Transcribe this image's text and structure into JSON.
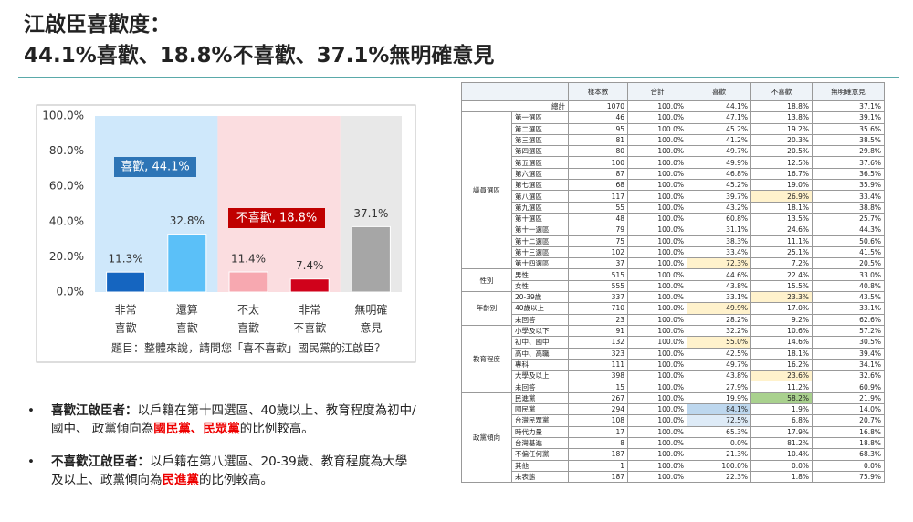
{
  "header": {
    "title_lines": [
      "江啟臣喜歡度：",
      "44.1%喜歡、18.8%不喜歡、37.1%無明確意見"
    ]
  },
  "chart_data": {
    "type": "bar",
    "categories": [
      [
        "非常",
        "喜歡"
      ],
      [
        "還算",
        "喜歡"
      ],
      [
        "不太",
        "喜歡"
      ],
      [
        "非常",
        "不喜歡"
      ],
      [
        "無明確",
        "意見"
      ]
    ],
    "values": [
      11.3,
      32.8,
      11.4,
      7.4,
      37.1
    ],
    "value_labels": [
      "11.3%",
      "32.8%",
      "11.4%",
      "7.4%",
      "37.1%"
    ],
    "colors": [
      "#1565c0",
      "#5bc0f8",
      "#f7a8b0",
      "#d0021b",
      "#a6a6a6"
    ],
    "ylim": [
      0,
      100
    ],
    "yticks": [
      {
        "value": 0,
        "label": "0.0%"
      },
      {
        "value": 20,
        "label": "20.0%"
      },
      {
        "value": 40,
        "label": "40.0%"
      },
      {
        "value": 60,
        "label": "60.0%"
      },
      {
        "value": 80,
        "label": "80.0%"
      },
      {
        "value": 100,
        "label": "100.0%"
      }
    ],
    "grid": false,
    "annotations": [
      "喜歡, 44.1%",
      "不喜歡, 18.8%"
    ],
    "footnote": "題目：整體來說，請問您「喜不喜歡」國民黨的江啟臣？"
  },
  "bullets": [
    {
      "label": "喜歡江啟臣者：",
      "text": "以戶籍在第十四選區、40歲以上、教育程度為初中/國中、 政黨傾向為",
      "highlight": "國民黨、民眾黨",
      "tail": "的比例較高。"
    },
    {
      "label": "不喜歡江啟臣者：",
      "text": "以戶籍在第八選區、20-39歲、教育程度為大學及以上、政黨傾向為",
      "highlight": "民進黨",
      "tail": "的比例較高。"
    }
  ],
  "table": {
    "header": [
      "樣本數",
      "合計",
      "喜歡",
      "不喜歡",
      "無明確意見"
    ],
    "total": {
      "label": "總計",
      "cells": [
        "1070",
        "100.0%",
        "44.1%",
        "18.8%",
        "37.1%"
      ]
    },
    "groups": [
      {
        "name": "議員選區",
        "rows": [
          {
            "label": "第一選區",
            "cells": [
              "46",
              "100.0%",
              "47.1%",
              "13.8%",
              "39.1%"
            ]
          },
          {
            "label": "第二選區",
            "cells": [
              "95",
              "100.0%",
              "45.2%",
              "19.2%",
              "35.6%"
            ]
          },
          {
            "label": "第三選區",
            "cells": [
              "81",
              "100.0%",
              "41.2%",
              "20.3%",
              "38.5%"
            ]
          },
          {
            "label": "第四選區",
            "cells": [
              "80",
              "100.0%",
              "49.7%",
              "20.5%",
              "29.8%"
            ]
          },
          {
            "label": "第五選區",
            "cells": [
              "100",
              "100.0%",
              "49.9%",
              "12.5%",
              "37.6%"
            ]
          },
          {
            "label": "第六選區",
            "cells": [
              "87",
              "100.0%",
              "46.8%",
              "16.7%",
              "36.5%"
            ]
          },
          {
            "label": "第七選區",
            "cells": [
              "68",
              "100.0%",
              "45.2%",
              "19.0%",
              "35.9%"
            ]
          },
          {
            "label": "第八選區",
            "cells": [
              "117",
              "100.0%",
              "39.7%",
              "26.9%",
              "33.4%"
            ],
            "highlight": {
              "cell": 3,
              "color": "#fff2cc"
            }
          },
          {
            "label": "第九選區",
            "cells": [
              "55",
              "100.0%",
              "43.2%",
              "18.1%",
              "38.8%"
            ]
          },
          {
            "label": "第十選區",
            "cells": [
              "48",
              "100.0%",
              "60.8%",
              "13.5%",
              "25.7%"
            ]
          },
          {
            "label": "第十一選區",
            "cells": [
              "79",
              "100.0%",
              "31.1%",
              "24.6%",
              "44.3%"
            ]
          },
          {
            "label": "第十二選區",
            "cells": [
              "75",
              "100.0%",
              "38.3%",
              "11.1%",
              "50.6%"
            ]
          },
          {
            "label": "第十三選區",
            "cells": [
              "102",
              "100.0%",
              "33.4%",
              "25.1%",
              "41.5%"
            ]
          },
          {
            "label": "第十四選區",
            "cells": [
              "37",
              "100.0%",
              "72.3%",
              "7.2%",
              "20.5%"
            ],
            "highlight": {
              "cell": 2,
              "color": "#fff2cc"
            }
          }
        ]
      },
      {
        "name": "性別",
        "rows": [
          {
            "label": "男性",
            "cells": [
              "515",
              "100.0%",
              "44.6%",
              "22.4%",
              "33.0%"
            ]
          },
          {
            "label": "女性",
            "cells": [
              "555",
              "100.0%",
              "43.8%",
              "15.5%",
              "40.8%"
            ]
          }
        ]
      },
      {
        "name": "年齡別",
        "rows": [
          {
            "label": "20-39歲",
            "cells": [
              "337",
              "100.0%",
              "33.1%",
              "23.3%",
              "43.5%"
            ],
            "highlight": {
              "cell": 3,
              "color": "#fff2cc"
            }
          },
          {
            "label": "40歲以上",
            "cells": [
              "710",
              "100.0%",
              "49.9%",
              "17.0%",
              "33.1%"
            ],
            "highlight": {
              "cell": 2,
              "color": "#fff2cc"
            }
          },
          {
            "label": "未回答",
            "cells": [
              "23",
              "100.0%",
              "28.2%",
              "9.2%",
              "62.6%"
            ]
          }
        ]
      },
      {
        "name": "教育程度",
        "rows": [
          {
            "label": "小學及以下",
            "cells": [
              "91",
              "100.0%",
              "32.2%",
              "10.6%",
              "57.2%"
            ]
          },
          {
            "label": "初中、國中",
            "cells": [
              "132",
              "100.0%",
              "55.0%",
              "14.6%",
              "30.5%"
            ],
            "highlight": {
              "cell": 2,
              "color": "#fff2cc"
            }
          },
          {
            "label": "高中、高職",
            "cells": [
              "323",
              "100.0%",
              "42.5%",
              "18.1%",
              "39.4%"
            ]
          },
          {
            "label": "專科",
            "cells": [
              "111",
              "100.0%",
              "49.7%",
              "16.2%",
              "34.1%"
            ]
          },
          {
            "label": "大學及以上",
            "cells": [
              "398",
              "100.0%",
              "43.8%",
              "23.6%",
              "32.6%"
            ],
            "highlight": {
              "cell": 3,
              "color": "#fff2cc"
            }
          },
          {
            "label": "未回答",
            "cells": [
              "15",
              "100.0%",
              "27.9%",
              "11.2%",
              "60.9%"
            ]
          }
        ]
      },
      {
        "name": "政黨傾向",
        "rows": [
          {
            "label": "民進黨",
            "cells": [
              "267",
              "100.0%",
              "19.9%",
              "58.2%",
              "21.9%"
            ],
            "highlight": {
              "cell": 3,
              "color": "#a9d18e"
            }
          },
          {
            "label": "國民黨",
            "cells": [
              "294",
              "100.0%",
              "84.1%",
              "1.9%",
              "14.0%"
            ],
            "highlight": {
              "cell": 2,
              "color": "#bdd7ee"
            }
          },
          {
            "label": "台灣民眾黨",
            "cells": [
              "108",
              "100.0%",
              "72.5%",
              "6.8%",
              "20.7%"
            ],
            "highlight": {
              "cell": 2,
              "color": "#deebf7"
            }
          },
          {
            "label": "時代力量",
            "cells": [
              "17",
              "100.0%",
              "65.3%",
              "17.9%",
              "16.8%"
            ]
          },
          {
            "label": "台灣基進",
            "cells": [
              "8",
              "100.0%",
              "0.0%",
              "81.2%",
              "18.8%"
            ]
          },
          {
            "label": "不偏任何黨",
            "cells": [
              "187",
              "100.0%",
              "21.3%",
              "10.4%",
              "68.3%"
            ]
          },
          {
            "label": "其他",
            "cells": [
              "1",
              "100.0%",
              "100.0%",
              "0.0%",
              "0.0%"
            ]
          },
          {
            "label": "未表態",
            "cells": [
              "187",
              "100.0%",
              "22.3%",
              "1.8%",
              "75.9%"
            ]
          }
        ]
      }
    ]
  }
}
